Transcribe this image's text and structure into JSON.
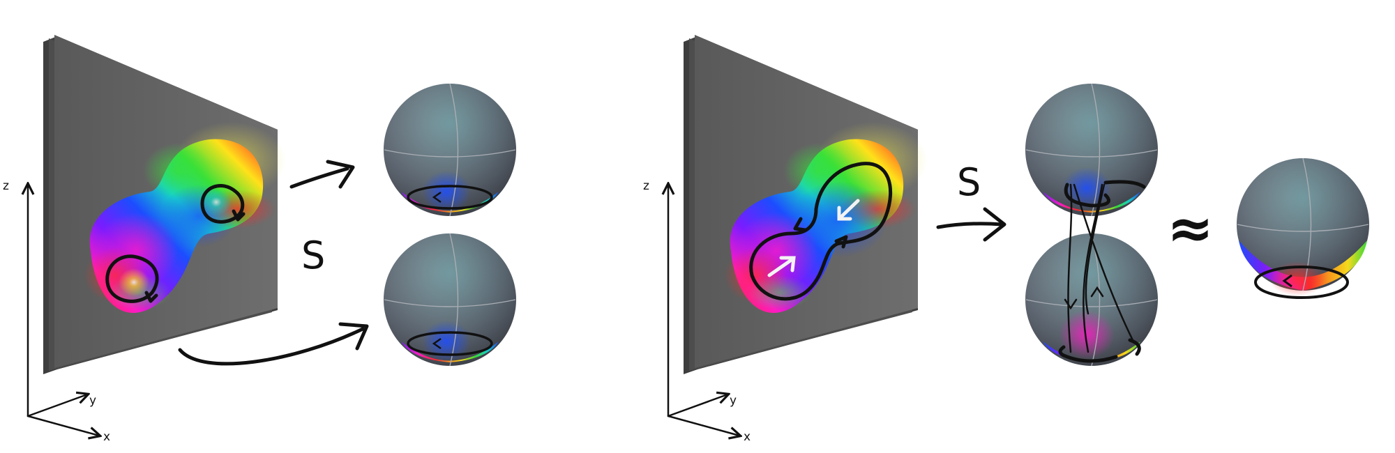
{
  "figure": {
    "left_panel": {
      "axes": {
        "z": "z",
        "y": "y",
        "x": "x"
      },
      "map_label": "S"
    },
    "right_panel": {
      "axes": {
        "z": "z",
        "y": "y",
        "x": "x"
      },
      "map_label": "S",
      "equivalence_symbol": "≈"
    },
    "colors": {
      "slab_dark": "#4a4a4a",
      "slab_face": "#666666",
      "ink": "#111111",
      "hue_cycle": [
        "#ff2a2a",
        "#ff9a1a",
        "#ffe11a",
        "#38e038",
        "#16d6c8",
        "#1c4dff",
        "#7a1cff",
        "#ff1ac6"
      ]
    },
    "icons": {
      "spheres": "hue-sphere",
      "slabs": "hue-textured-slab"
    }
  }
}
